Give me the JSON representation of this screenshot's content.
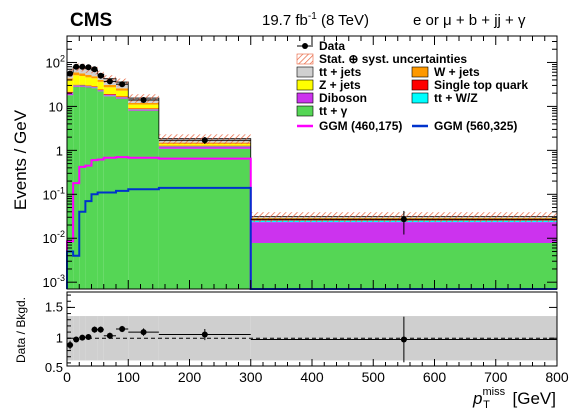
{
  "header": {
    "experiment": "CMS",
    "lumi_prefix": "19.7 fb",
    "lumi_exp": "-1",
    "lumi_suffix": " (8 TeV)",
    "channel": "e or μ + b + jj + γ"
  },
  "chart_data": [
    {
      "type": "histogram-stacked",
      "xlabel_main": "p",
      "xlabel_sup": "miss",
      "xlabel_sub": "T",
      "xlabel_unit": " [GeV]",
      "ylabel": "Events / GeV",
      "xlim": [
        0,
        800
      ],
      "ylim": [
        0.0007,
        400
      ],
      "yscale": "log",
      "x_ticks": [
        "0",
        "100",
        "200",
        "300",
        "400",
        "500",
        "600",
        "700",
        "800"
      ],
      "y_ticks": [
        {
          "value": 100,
          "base": "10",
          "exp": "2"
        },
        {
          "value": 10,
          "base": "10",
          "exp": ""
        },
        {
          "value": 1,
          "base": "1",
          "exp": ""
        },
        {
          "value": 0.1,
          "base": "10",
          "exp": "-1"
        },
        {
          "value": 0.01,
          "base": "10",
          "exp": "-2"
        },
        {
          "value": 0.001,
          "base": "10",
          "exp": "-3"
        }
      ],
      "bin_edges": [
        0,
        10,
        20,
        30,
        40,
        50,
        60,
        80,
        100,
        150,
        300,
        800
      ],
      "stack": [
        {
          "name": "tt + γ",
          "color": "#55d655",
          "values": [
            18.0,
            28.0,
            28.0,
            27.0,
            26.0,
            22.0,
            17.0,
            15.0,
            8.0,
            1.08,
            0.0078
          ]
        },
        {
          "name": "Diboson",
          "color": "#cc33ee",
          "values": [
            2.0,
            1.5,
            1.3,
            1.2,
            1.1,
            1.0,
            1.0,
            0.9,
            0.4,
            0.12,
            0.0155
          ]
        },
        {
          "name": "tt + W/Z",
          "color": "#00ffff",
          "values": [
            0.5,
            0.6,
            0.6,
            0.6,
            0.5,
            0.4,
            0.4,
            0.3,
            0.2,
            0.03,
            0.002
          ]
        },
        {
          "name": "Single top quark",
          "color": "#ff0000",
          "values": [
            1.0,
            1.0,
            1.2,
            1.0,
            1.0,
            0.8,
            0.8,
            0.6,
            0.4,
            0.05,
            0.0015
          ]
        },
        {
          "name": "Z + jets",
          "color": "#ffff00",
          "values": [
            17.0,
            20.0,
            18.0,
            16.0,
            15.0,
            12.0,
            8.0,
            6.0,
            2.0,
            0.12,
            0.0012
          ]
        },
        {
          "name": "W + jets",
          "color": "#ff9900",
          "values": [
            5.0,
            8.0,
            7.0,
            6.0,
            5.0,
            4.0,
            3.5,
            3.0,
            1.0,
            0.1,
            0.0008
          ]
        },
        {
          "name": "tt + jets",
          "color": "#d0d0d0",
          "values": [
            16.0,
            20.0,
            22.0,
            20.0,
            18.0,
            14.0,
            12.0,
            10.0,
            3.5,
            0.35,
            0.0025
          ]
        }
      ],
      "uncertainty_rel": [
        0.2,
        0.2,
        0.2,
        0.2,
        0.2,
        0.2,
        0.2,
        0.2,
        0.22,
        0.25,
        0.25
      ],
      "data": {
        "name": "Data",
        "x": [
          5,
          15,
          25,
          35,
          45,
          55,
          70,
          90,
          125,
          225,
          550
        ],
        "y": [
          56,
          80,
          80,
          78,
          70,
          50,
          37,
          32,
          14,
          1.7,
          0.027
        ],
        "yerr_rel": [
          0.1,
          0.08,
          0.08,
          0.08,
          0.09,
          0.1,
          0.1,
          0.1,
          0.12,
          0.18,
          0.55
        ],
        "xerr": [
          5,
          5,
          5,
          5,
          5,
          5,
          10,
          10,
          25,
          75,
          250
        ]
      },
      "signals": [
        {
          "name": "GGM (460,175)",
          "color": "#ff00ff",
          "values": [
            0.0085,
            0.18,
            0.42,
            0.45,
            0.6,
            0.62,
            0.68,
            0.7,
            0.68,
            0.65,
            0.0
          ]
        },
        {
          "name": "GGM (560,325)",
          "color": "#0033cc",
          "values": [
            0.005,
            0.004,
            0.04,
            0.07,
            0.1,
            0.11,
            0.11,
            0.12,
            0.13,
            0.14,
            0.0
          ]
        }
      ],
      "legend": {
        "placement": "top-right",
        "entries": [
          {
            "label": "Data",
            "kind": "marker",
            "color": "#000000"
          },
          {
            "label": "Stat. ⊕ syst. uncertainties",
            "kind": "hatch",
            "color": "#e8603a"
          },
          {
            "label": "tt + jets",
            "kind": "box",
            "color": "#d0d0d0"
          },
          {
            "label": "W + jets",
            "kind": "box",
            "color": "#ff9900"
          },
          {
            "label": "Z + jets",
            "kind": "box",
            "color": "#ffff00"
          },
          {
            "label": "Single top quark",
            "kind": "box",
            "color": "#ff0000"
          },
          {
            "label": "Diboson",
            "kind": "box",
            "color": "#cc33ee"
          },
          {
            "label": "tt + W/Z",
            "kind": "box",
            "color": "#00ffff"
          },
          {
            "label": "tt + γ",
            "kind": "box",
            "color": "#55d655"
          },
          {
            "label": "GGM (460,175)",
            "kind": "line",
            "color": "#ff00ff"
          },
          {
            "label": "GGM (560,325)",
            "kind": "line",
            "color": "#0033cc"
          }
        ]
      }
    },
    {
      "type": "ratio",
      "ylabel": "Data / Bkgd.",
      "ylim": [
        0.55,
        1.75
      ],
      "y_ticks": [
        "0.5",
        "1",
        "1.5"
      ],
      "band_rel": [
        0.36,
        0.36,
        0.36,
        0.36,
        0.36,
        0.36,
        0.36,
        0.36,
        0.36,
        0.36,
        0.36
      ],
      "reference": 1.0,
      "points": {
        "x": [
          5,
          15,
          25,
          35,
          45,
          55,
          70,
          90,
          125,
          225,
          550
        ],
        "y": [
          0.89,
          0.98,
          1.01,
          1.02,
          1.14,
          1.14,
          1.04,
          1.15,
          1.1,
          1.06,
          0.98
        ],
        "yerr": [
          0.07,
          0.04,
          0.04,
          0.04,
          0.05,
          0.05,
          0.05,
          0.05,
          0.06,
          0.09,
          0.37
        ],
        "xerr": [
          5,
          5,
          5,
          5,
          5,
          5,
          10,
          10,
          25,
          75,
          250
        ]
      }
    }
  ]
}
